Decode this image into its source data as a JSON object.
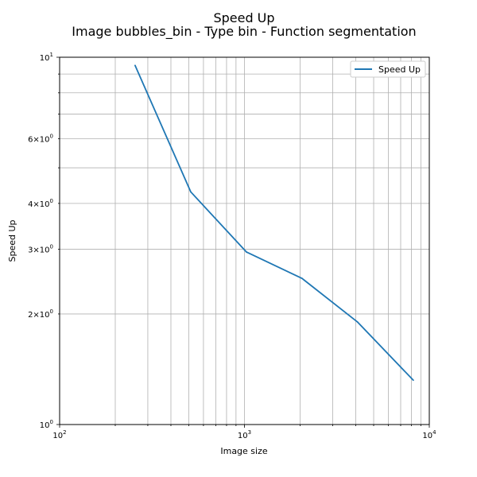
{
  "chart_data": {
    "type": "line",
    "title": "Speed Up",
    "subtitle": "Image bubbles_bin - Type bin - Function segmentation",
    "xlabel": "Image size",
    "ylabel": "Speed Up",
    "x_scale": "log",
    "y_scale": "log",
    "xlim": [
      100,
      10000
    ],
    "ylim": [
      1,
      10
    ],
    "grid": "on (major and minor)",
    "legend_position": "top-right",
    "x_tick_labels": [
      {
        "value": 100,
        "base": "10",
        "exp": "2"
      },
      {
        "value": 1000,
        "base": "10",
        "exp": "3"
      },
      {
        "value": 10000,
        "base": "10",
        "exp": "4"
      }
    ],
    "y_tick_labels": [
      {
        "value": 1,
        "base": "10",
        "exp": "0"
      },
      {
        "value": 2,
        "base": "2×10",
        "exp": "0"
      },
      {
        "value": 3,
        "base": "3×10",
        "exp": "0"
      },
      {
        "value": 4,
        "base": "4×10",
        "exp": "0"
      },
      {
        "value": 6,
        "base": "6×10",
        "exp": "0"
      },
      {
        "value": 10,
        "base": "10",
        "exp": "1"
      }
    ],
    "series": [
      {
        "name": "Speed Up",
        "color": "#1f77b4",
        "x": [
          256,
          512,
          1024,
          2048,
          4096,
          8192
        ],
        "y": [
          9.5,
          4.3,
          2.95,
          2.5,
          1.9,
          1.32
        ]
      }
    ]
  }
}
